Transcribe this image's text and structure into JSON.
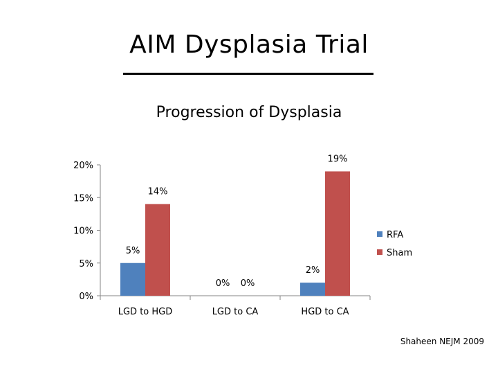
{
  "slide": {
    "title": "AIM Dysplasia Trial",
    "source": "Shaheen NEJM 2009"
  },
  "chart_data": {
    "type": "bar",
    "title": "Progression of Dysplasia",
    "categories": [
      "LGD to HGD",
      "LGD to CA",
      "HGD to CA"
    ],
    "series": [
      {
        "name": "RFA",
        "color": "#4F81BD",
        "values": [
          5,
          0,
          2
        ],
        "labels": [
          "5%",
          "0%",
          "2%"
        ]
      },
      {
        "name": "Sham",
        "color": "#C0504D",
        "values": [
          14,
          0,
          19
        ],
        "labels": [
          "14%",
          "0%",
          "19%"
        ]
      }
    ],
    "yticks": [
      "0%",
      "5%",
      "10%",
      "15%",
      "20%"
    ],
    "ylim": [
      0,
      20
    ],
    "grid": false,
    "legend": "right"
  }
}
